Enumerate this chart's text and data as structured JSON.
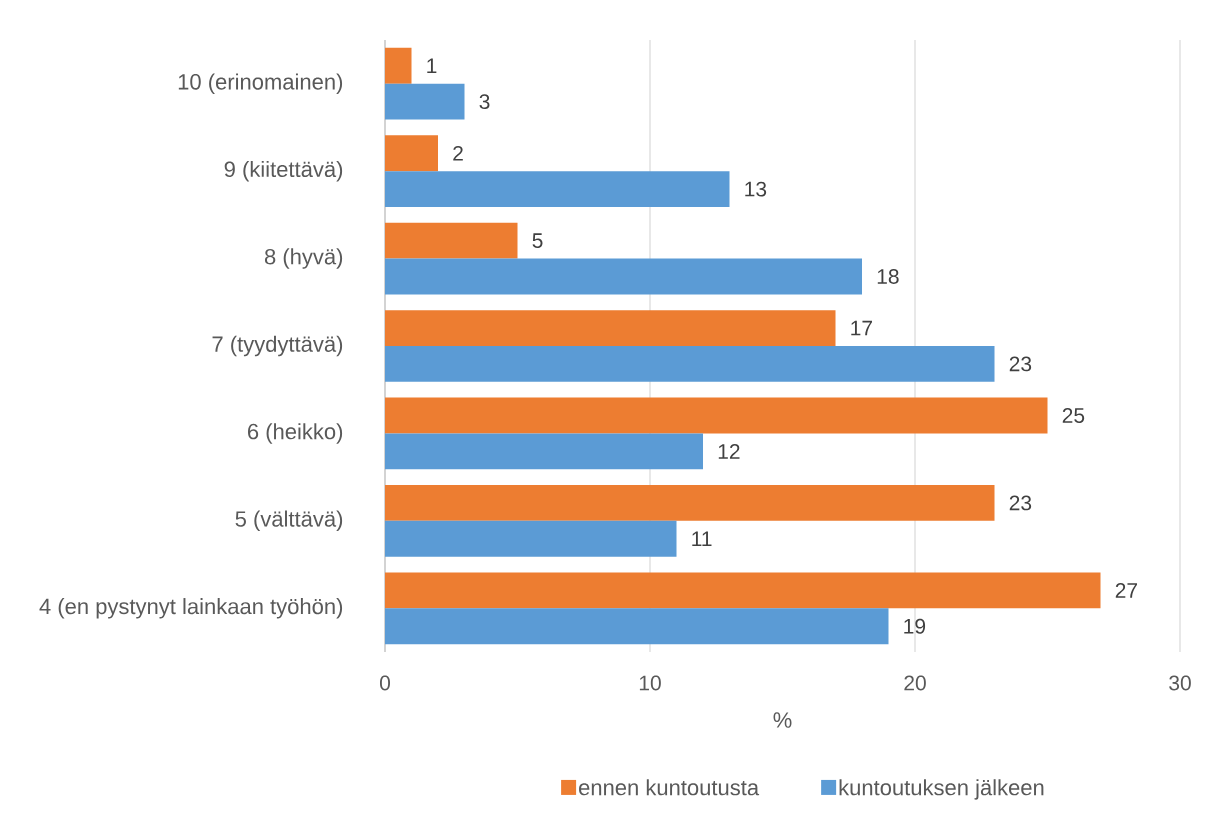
{
  "chart_data": {
    "type": "bar",
    "orientation": "horizontal",
    "xlabel": "%",
    "categories": [
      "10 (erinomainen)",
      "9 (kiitettävä)",
      "8 (hyvä)",
      "7 (tyydyttävä)",
      "6 (heikko)",
      "5 (välttävä)",
      "4 (en pystynyt lainkaan työhön)"
    ],
    "series": [
      {
        "name": "ennen kuntoutusta",
        "color": "#ed7d31",
        "values": [
          1,
          2,
          5,
          17,
          25,
          23,
          27
        ]
      },
      {
        "name": "kuntoutuksen jälkeen",
        "color": "#5b9bd5",
        "values": [
          3,
          13,
          18,
          23,
          12,
          11,
          19
        ]
      }
    ],
    "xlim": [
      0,
      30
    ],
    "xticks": [
      0,
      10,
      20,
      30
    ],
    "grid": "x",
    "legend": "bottom",
    "data_labels": true
  }
}
